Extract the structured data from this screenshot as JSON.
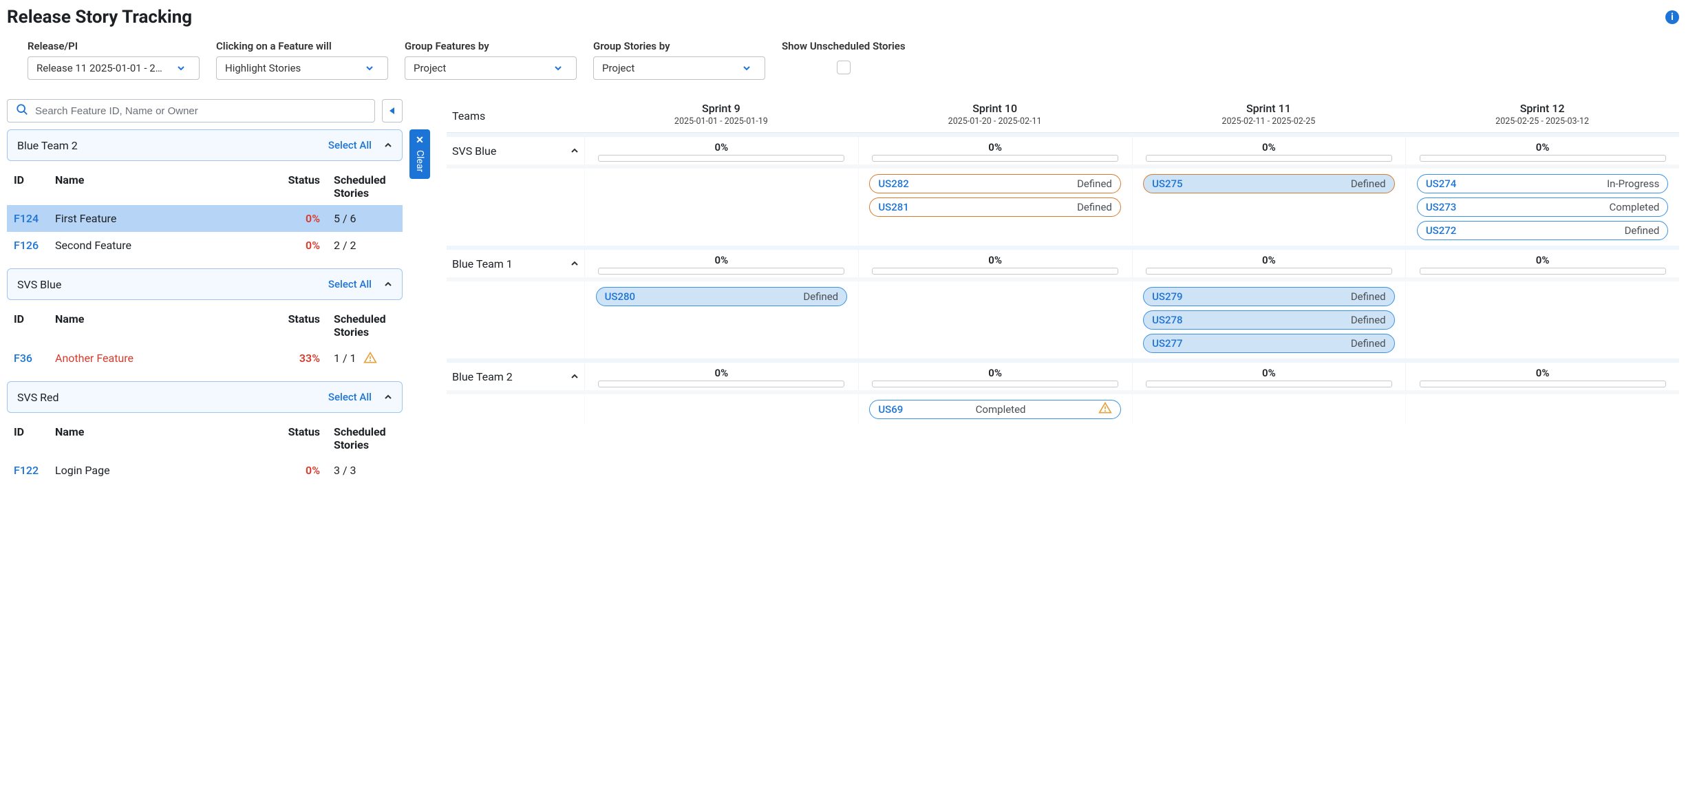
{
  "header": {
    "title": "Release Story Tracking"
  },
  "filters": {
    "release": {
      "label": "Release/PI",
      "value": "Release 11 2025-01-01 - 2…"
    },
    "click_action": {
      "label": "Clicking on a Feature will",
      "value": "Highlight Stories"
    },
    "group_features": {
      "label": "Group Features by",
      "value": "Project"
    },
    "group_stories": {
      "label": "Group Stories by",
      "value": "Project"
    },
    "show_unscheduled": {
      "label": "Show Unscheduled Stories"
    }
  },
  "search": {
    "placeholder": "Search Feature ID, Name or Owner"
  },
  "clear_label": "Clear",
  "left_groups": [
    {
      "title": "Blue Team 2",
      "select_all": "Select All",
      "columns": {
        "id": "ID",
        "name": "Name",
        "status": "Status",
        "scheduled": "Scheduled Stories"
      },
      "rows": [
        {
          "id": "F124",
          "name": "First Feature",
          "status": "0%",
          "scheduled": "5 / 6",
          "selected": true
        },
        {
          "id": "F126",
          "name": "Second Feature",
          "status": "0%",
          "scheduled": "2 / 2"
        }
      ]
    },
    {
      "title": "SVS Blue",
      "select_all": "Select All",
      "columns": {
        "id": "ID",
        "name": "Name",
        "status": "Status",
        "scheduled": "Scheduled Stories"
      },
      "rows": [
        {
          "id": "F36",
          "name": "Another Feature",
          "status": "33%",
          "scheduled": "1 / 1",
          "warn": true,
          "red_name": true
        }
      ]
    },
    {
      "title": "SVS Red",
      "select_all": "Select All",
      "columns": {
        "id": "ID",
        "name": "Name",
        "status": "Status",
        "scheduled": "Scheduled Stories"
      },
      "rows": [
        {
          "id": "F122",
          "name": "Login Page",
          "status": "0%",
          "scheduled": "3 / 3"
        }
      ]
    }
  ],
  "grid": {
    "teams_header": "Teams",
    "sprints": [
      {
        "name": "Sprint 9",
        "dates": "2025-01-01 - 2025-01-19"
      },
      {
        "name": "Sprint 10",
        "dates": "2025-01-20 - 2025-02-11"
      },
      {
        "name": "Sprint 11",
        "dates": "2025-02-11 - 2025-02-25"
      },
      {
        "name": "Sprint 12",
        "dates": "2025-02-25 - 2025-03-12"
      }
    ],
    "teams": [
      {
        "name": "SVS Blue",
        "progress": [
          "0%",
          "0%",
          "0%",
          "0%"
        ],
        "stories": [
          [],
          [
            {
              "id": "US282",
              "status": "Defined",
              "style": "orange-outline"
            },
            {
              "id": "US281",
              "status": "Defined",
              "style": "orange-outline"
            }
          ],
          [
            {
              "id": "US275",
              "status": "Defined",
              "style": "orange-filled"
            }
          ],
          [
            {
              "id": "US274",
              "status": "In-Progress",
              "style": "blue-outline"
            },
            {
              "id": "US273",
              "status": "Completed",
              "style": "blue-outline"
            },
            {
              "id": "US272",
              "status": "Defined",
              "style": "blue-outline"
            }
          ]
        ]
      },
      {
        "name": "Blue Team 1",
        "progress": [
          "0%",
          "0%",
          "0%",
          "0%"
        ],
        "stories": [
          [
            {
              "id": "US280",
              "status": "Defined",
              "style": "blue-filled"
            }
          ],
          [],
          [
            {
              "id": "US279",
              "status": "Defined",
              "style": "blue-filled"
            },
            {
              "id": "US278",
              "status": "Defined",
              "style": "blue-filled"
            },
            {
              "id": "US277",
              "status": "Defined",
              "style": "blue-filled"
            }
          ],
          []
        ]
      },
      {
        "name": "Blue Team 2",
        "progress": [
          "0%",
          "0%",
          "0%",
          "0%"
        ],
        "stories": [
          [],
          [
            {
              "id": "US69",
              "status": "Completed",
              "style": "blue-outline",
              "warn": true
            }
          ],
          [],
          []
        ]
      }
    ]
  },
  "style": {
    "accent_blue": "#1d74d7",
    "status_red": "#d93a2b",
    "warn_orange": "#e5a13a",
    "pill_fill_blue": "#cfe3f6",
    "pill_border_orange": "#d97b2e",
    "pill_border_blue": "#3893e8",
    "group_header_bg": "#f3f9ff",
    "group_header_border": "#9ec7ef",
    "selected_row_bg": "#b6d4f5"
  }
}
